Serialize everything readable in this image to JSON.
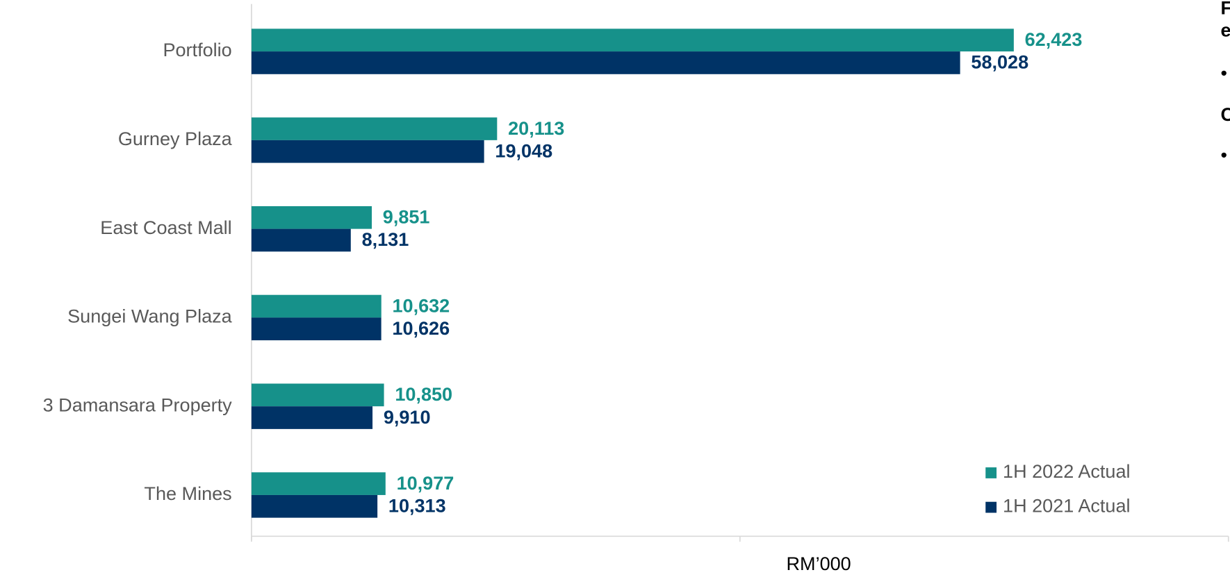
{
  "chart_data": {
    "type": "hbar",
    "categories": [
      "Portfolio",
      "Gurney Plaza",
      "East Coast Mall",
      "Sungei Wang Plaza",
      "3 Damansara Property",
      "The Mines"
    ],
    "series": [
      {
        "name": "1H 2022 Actual",
        "color": "#16918a",
        "values": [
          62423,
          20113,
          9851,
          10632,
          10850,
          10977
        ],
        "value_labels": [
          "62,423",
          "20,113",
          "9,851",
          "10,632",
          "10,850",
          "10,977"
        ]
      },
      {
        "name": "1H 2021 Actual",
        "color": "#003366",
        "values": [
          58028,
          19048,
          8131,
          10626,
          9910,
          10313
        ],
        "value_labels": [
          "58,028",
          "19,048",
          "8,131",
          "10,626",
          "9,910",
          "10,313"
        ]
      }
    ],
    "xlabel": "RM’000",
    "xlim": [
      0,
      80000
    ],
    "xticks": [
      0,
      40000,
      80000
    ],
    "legend": "lower right",
    "side_text": [
      "F",
      "e",
      "C"
    ]
  }
}
